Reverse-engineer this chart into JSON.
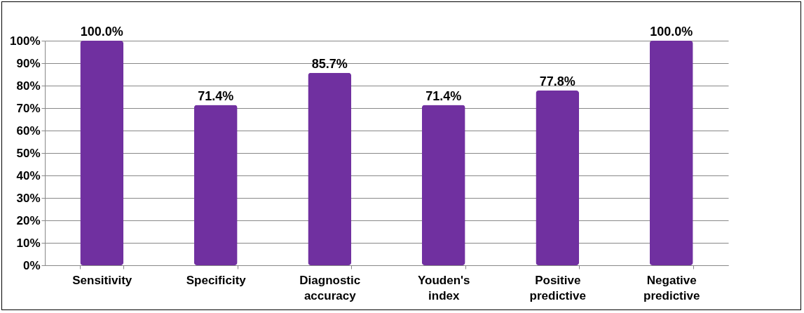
{
  "chart_data": {
    "type": "bar",
    "categories": [
      "Sensitivity",
      "Specificity",
      "Diagnostic accuracy",
      "Youden's index",
      "Positive predictive",
      "Negative predictive"
    ],
    "values": [
      100,
      71.4,
      85.7,
      71.4,
      77.8,
      100
    ],
    "value_labels": [
      "100.0%",
      "71.4%",
      "85.7%",
      "71.4%",
      "77.8%",
      "100.0%"
    ],
    "color": "#7030a0",
    "ylim": [
      0,
      100
    ],
    "yticks": [
      {
        "value": 0,
        "label": "0%"
      },
      {
        "value": 10,
        "label": "10%"
      },
      {
        "value": 20,
        "label": "20%"
      },
      {
        "value": 30,
        "label": "30%"
      },
      {
        "value": 40,
        "label": "40%"
      },
      {
        "value": 50,
        "label": "50%"
      },
      {
        "value": 60,
        "label": "60%"
      },
      {
        "value": 70,
        "label": "70%"
      },
      {
        "value": 80,
        "label": "80%"
      },
      {
        "value": 90,
        "label": "90%"
      },
      {
        "value": 100,
        "label": "100%"
      }
    ],
    "grid": "y"
  }
}
